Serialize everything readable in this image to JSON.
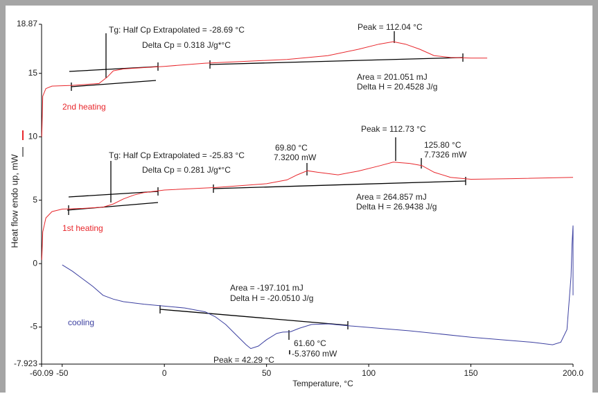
{
  "chart_data": {
    "type": "line",
    "y_label": "Heat flow endo up, mW",
    "x_label": "Temperature, °C",
    "xlim": [
      -60.09,
      200
    ],
    "xticks": [
      -60.09,
      -50,
      0,
      50,
      100,
      150,
      {
        "value": 200,
        "label": "200.0"
      }
    ],
    "ylim": [
      -7.923,
      18.87
    ],
    "yticks": [
      -7.923,
      -5,
      0,
      5,
      10,
      15,
      18.87
    ],
    "series": [
      {
        "name": "2nd heating",
        "color": "#e8262b",
        "x": [
          -60,
          -59.5,
          -58,
          -55,
          -45,
          -32,
          -28,
          -25,
          -20,
          -10,
          0,
          20,
          40,
          60,
          80,
          95,
          105,
          112,
          118,
          125,
          132,
          140,
          150,
          158
        ],
        "values": [
          10,
          13.2,
          13.8,
          14,
          14.05,
          14.2,
          14.7,
          15.2,
          15.35,
          15.45,
          15.55,
          15.8,
          15.95,
          16.1,
          16.4,
          16.9,
          17.3,
          17.5,
          17.3,
          16.9,
          16.4,
          16.25,
          16.2,
          16.2
        ]
      },
      {
        "name": "1st heating",
        "color": "#e8262b",
        "x": [
          -60,
          -59.5,
          -58,
          -55,
          -50,
          -40,
          -30,
          -25,
          -20,
          -15,
          -10,
          0,
          25,
          50,
          60,
          65,
          70,
          75,
          85,
          95,
          105,
          112,
          120,
          126,
          132,
          140,
          150,
          170,
          200
        ],
        "values": [
          0.3,
          2.5,
          3.6,
          4.1,
          4.3,
          4.35,
          4.45,
          4.7,
          5.1,
          5.4,
          5.6,
          5.8,
          6.0,
          6.3,
          6.6,
          7.0,
          7.32,
          7.2,
          7.0,
          7.3,
          7.7,
          8.0,
          7.9,
          7.73,
          7.2,
          6.8,
          6.65,
          6.7,
          6.8
        ]
      },
      {
        "name": "cooling",
        "color": "#3b3fa0",
        "x": [
          -50,
          -45,
          -40,
          -35,
          -30,
          -25,
          -20,
          -10,
          0,
          10,
          20,
          25,
          30,
          35,
          40,
          42.29,
          46,
          50,
          55,
          58,
          61.6,
          66,
          72,
          80,
          90,
          120,
          150,
          180,
          190,
          194,
          197,
          199,
          199.5,
          200,
          200
        ],
        "values": [
          -0.1,
          -0.6,
          -1.2,
          -1.8,
          -2.5,
          -2.8,
          -3.0,
          -3.2,
          -3.35,
          -3.5,
          -3.8,
          -4.2,
          -4.8,
          -5.6,
          -6.4,
          -6.7,
          -6.5,
          -6.0,
          -5.5,
          -5.4,
          -5.38,
          -5.1,
          -4.8,
          -4.75,
          -4.9,
          -5.3,
          -5.8,
          -6.2,
          -6.4,
          -6.2,
          -5.2,
          -1,
          1.5,
          3,
          -2.5
        ]
      }
    ],
    "annotations": [
      "Tg: Half Cp Extrapolated = -28.69 °C",
      "Delta Cp = 0.318 J/g*°C",
      "Peak = 112.04 °C",
      "Area = 201.051 mJ",
      "Delta H = 20.4528 J/g",
      "Tg: Half Cp Extrapolated = -25.83 °C",
      "Delta Cp = 0.281 J/g*°C",
      "69.80 °C",
      "7.3200 mW",
      "Peak = 112.73 °C",
      "125.80 °C",
      "7.7326 mW",
      "Area = 264.857 mJ",
      "Delta H = 26.9438 J/g",
      "Area = -197.101 mJ",
      "Delta H = -20.0510 J/g",
      "Peak = 42.29 °C",
      "61.60 °C",
      "-5.3760 mW"
    ]
  }
}
